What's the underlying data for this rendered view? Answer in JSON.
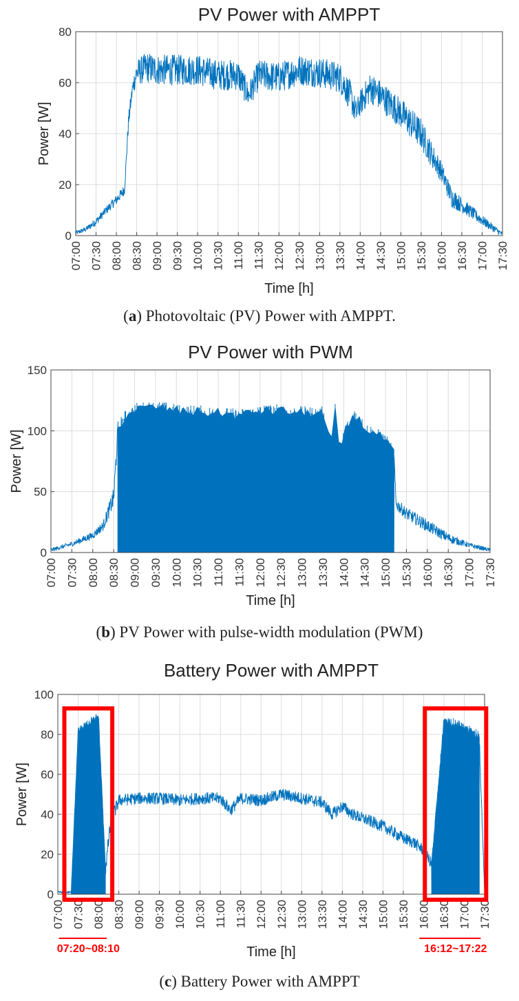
{
  "colors": {
    "series": "#0072bd",
    "highlight": "#ff0000",
    "grid": "#dcdcdc"
  },
  "captions": [
    {
      "letter": "a",
      "prefix": "(",
      "text": ") Photovoltaic (PV) Power with AMPPT."
    },
    {
      "letter": "b",
      "prefix": "(",
      "text": ") PV Power with pulse-width modulation (PWM)"
    },
    {
      "letter": "c",
      "prefix": "(",
      "text": ") Battery Power with AMPPT"
    }
  ],
  "chart_data": [
    {
      "type": "line",
      "title": "PV Power with AMPPT",
      "xlabel": "Time",
      "xlabel_unit": "[h]",
      "ylabel": "Power [W]",
      "ylim": [
        0,
        80
      ],
      "yticks": [
        0,
        20,
        40,
        60,
        80
      ],
      "xlim_hours": [
        7.0,
        17.5
      ],
      "xticks": [
        "07:00",
        "07:30",
        "08:00",
        "08:30",
        "09:00",
        "09:30",
        "10:00",
        "10:30",
        "11:00",
        "11:30",
        "12:00",
        "12:30",
        "13:00",
        "13:30",
        "14:00",
        "14:30",
        "15:00",
        "15:30",
        "16:00",
        "16:30",
        "17:00",
        "17:30"
      ],
      "grid": true,
      "series": [
        {
          "name": "PV Power",
          "x": [
            7.0,
            7.25,
            7.5,
            7.75,
            8.0,
            8.2,
            8.3,
            8.4,
            8.5,
            8.75,
            9.0,
            9.5,
            10.0,
            10.5,
            11.0,
            11.25,
            11.5,
            12.0,
            12.5,
            13.0,
            13.5,
            13.75,
            13.9,
            14.0,
            14.25,
            14.5,
            15.0,
            15.5,
            15.75,
            16.0,
            16.25,
            16.5,
            17.0,
            17.5
          ],
          "values": [
            1,
            2.5,
            5.5,
            10,
            14,
            18,
            45,
            58,
            64,
            66,
            65,
            65,
            65,
            63,
            63,
            55,
            63,
            62,
            65,
            64,
            62,
            55,
            48,
            52,
            58,
            55,
            48,
            40,
            32,
            25,
            15,
            12,
            6,
            0.5
          ],
          "noise": [
            0.8,
            1,
            1.5,
            1.5,
            2,
            2,
            3,
            3,
            5,
            6,
            6,
            6,
            6,
            6,
            6,
            5,
            6,
            6,
            6,
            6,
            6,
            6,
            5,
            5,
            6,
            6,
            6,
            6,
            5,
            4,
            4,
            3,
            2,
            1
          ]
        }
      ]
    },
    {
      "type": "line",
      "title": "PV Power with PWM",
      "xlabel": "Time",
      "xlabel_unit": "[h]",
      "ylabel": "Power [W]",
      "ylim": [
        0,
        150
      ],
      "yticks": [
        0,
        50,
        100,
        150
      ],
      "xlim_hours": [
        7.0,
        17.5
      ],
      "xticks": [
        "07:00",
        "07:30",
        "08:00",
        "08:30",
        "09:00",
        "09:30",
        "10:00",
        "10:30",
        "11:00",
        "11:30",
        "12:00",
        "12:30",
        "13:00",
        "13:30",
        "14:00",
        "14:30",
        "15:00",
        "15:30",
        "16:00",
        "16:30",
        "17:00",
        "17:30"
      ],
      "grid": true,
      "series": [
        {
          "name": "PV Power",
          "x": [
            7.0,
            7.5,
            8.0,
            8.25,
            8.5,
            8.6,
            8.75,
            9.0,
            9.5,
            10.0,
            10.5,
            11.0,
            11.5,
            12.0,
            12.5,
            13.0,
            13.5,
            13.7,
            13.8,
            13.9,
            14.0,
            14.25,
            14.5,
            15.0,
            15.2,
            15.25,
            15.5,
            16.0,
            16.5,
            17.0,
            17.5
          ],
          "values": [
            2,
            7,
            14,
            22,
            45,
            100,
            108,
            115,
            117,
            114,
            113,
            112,
            110,
            114,
            114,
            112,
            112,
            85,
            118,
            78,
            95,
            112,
            100,
            90,
            80,
            40,
            32,
            22,
            12,
            6,
            2
          ],
          "noise": [
            1.5,
            2,
            3,
            4,
            8,
            8,
            8,
            8,
            8,
            8,
            8,
            8,
            8,
            8,
            8,
            8,
            8,
            6,
            6,
            6,
            8,
            8,
            8,
            8,
            6,
            5,
            5,
            5,
            4,
            2,
            1.5
          ],
          "pwm_band_hours": [
            8.6,
            15.2
          ]
        }
      ]
    },
    {
      "type": "line",
      "title": "Battery Power with AMPPT",
      "xlabel": "Time",
      "xlabel_unit": "[h]",
      "ylabel": "Power [W]",
      "ylim": [
        0,
        100
      ],
      "yticks": [
        0,
        20,
        40,
        60,
        80,
        100
      ],
      "xlim_hours": [
        7.0,
        17.5
      ],
      "xticks": [
        "07:00",
        "07:30",
        "08:00",
        "08:30",
        "09:00",
        "09:30",
        "10:00",
        "10:30",
        "11:00",
        "11:30",
        "12:00",
        "12:30",
        "13:00",
        "13:30",
        "14:00",
        "14:30",
        "15:00",
        "15:30",
        "16:00",
        "16:30",
        "17:00",
        "17:30"
      ],
      "grid": true,
      "series": [
        {
          "name": "Battery Power",
          "x": [
            7.0,
            7.33,
            7.5,
            8.0,
            8.17,
            8.3,
            8.5,
            9.0,
            9.5,
            10.0,
            10.5,
            11.0,
            11.25,
            11.5,
            12.0,
            12.5,
            13.0,
            13.5,
            13.75,
            14.0,
            14.25,
            14.5,
            15.0,
            15.5,
            15.75,
            16.0,
            16.2,
            16.5,
            17.0,
            17.37,
            17.5
          ],
          "values": [
            1,
            1,
            80,
            88,
            12,
            36,
            47,
            48,
            48,
            47,
            48,
            48,
            42,
            48,
            47,
            50,
            48,
            46,
            40,
            44,
            40,
            38,
            34,
            28,
            26,
            22,
            15,
            86,
            82,
            78,
            1
          ],
          "noise": [
            0.5,
            0.5,
            4,
            4,
            4,
            4,
            3,
            3,
            3,
            3,
            3,
            3,
            3,
            3,
            3,
            3,
            3,
            3,
            3,
            3,
            3,
            3,
            3,
            3,
            3,
            3,
            3,
            4,
            4,
            4,
            0.5
          ],
          "pwm_bands_hours": [
            [
              7.33,
              8.17
            ],
            [
              16.2,
              17.37
            ]
          ]
        }
      ],
      "annotations": [
        {
          "label": "07:20~08:10",
          "from_hours": 7.33,
          "to_hours": 8.17
        },
        {
          "label": "16:12~17:22",
          "from_hours": 16.2,
          "to_hours": 17.37
        }
      ]
    }
  ]
}
